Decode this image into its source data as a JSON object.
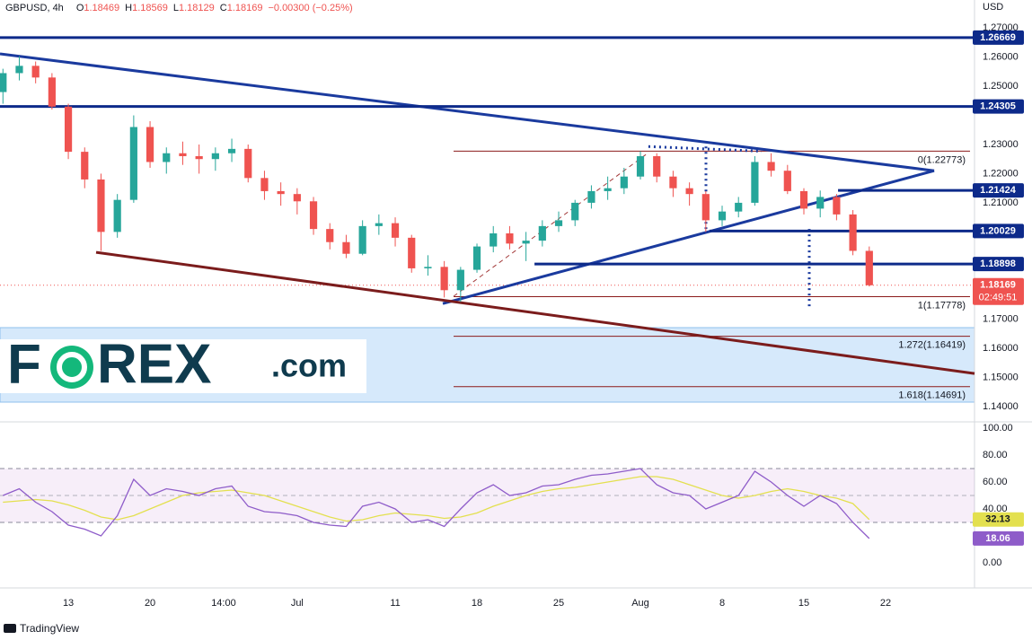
{
  "chart_data": [
    {
      "type": "candlestick",
      "title": "GBPUSD, 4h",
      "quote": [
        {
          "key": "O",
          "value": 1.18469
        },
        {
          "key": "H",
          "value": 1.18569
        },
        {
          "key": "L",
          "value": 1.18129
        },
        {
          "key": "C",
          "value": 1.18169
        }
      ],
      "change": "−0.00300 (−0.25%)",
      "currency": "USD",
      "x": [
        -4,
        -3,
        -2,
        -1,
        0,
        1,
        2,
        3,
        4,
        5,
        6,
        7,
        8,
        9,
        10,
        11,
        12,
        13,
        14,
        15,
        16,
        17,
        18,
        19,
        20,
        21,
        22,
        23,
        24,
        25,
        26,
        27,
        28,
        29,
        30,
        31,
        32,
        33,
        34,
        35,
        36,
        37,
        38,
        39,
        40,
        41,
        42,
        43,
        44,
        45,
        46,
        47,
        48,
        49
      ],
      "open": [
        1.248,
        1.2545,
        1.257,
        1.253,
        1.243,
        1.2275,
        1.218,
        1.2,
        1.211,
        1.236,
        1.224,
        1.227,
        1.226,
        1.225,
        1.227,
        1.2285,
        1.2185,
        1.214,
        1.213,
        1.2105,
        1.201,
        1.1965,
        1.1925,
        1.202,
        1.203,
        1.198,
        1.1875,
        1.188,
        1.18,
        1.187,
        1.195,
        1.1995,
        1.196,
        1.197,
        1.202,
        1.204,
        1.21,
        1.214,
        1.215,
        1.219,
        1.226,
        1.219,
        1.215,
        1.213,
        1.204,
        1.207,
        1.21,
        1.224,
        1.221,
        1.214,
        1.208,
        1.212,
        1.206,
        1.1935
      ],
      "high": [
        1.256,
        1.2603,
        1.2585,
        1.2545,
        1.244,
        1.229,
        1.22,
        1.213,
        1.24,
        1.238,
        1.229,
        1.231,
        1.23,
        1.229,
        1.232,
        1.23,
        1.221,
        1.217,
        1.215,
        1.212,
        1.203,
        1.199,
        1.204,
        1.206,
        1.205,
        1.199,
        1.192,
        1.19,
        1.188,
        1.196,
        1.202,
        1.202,
        1.2,
        1.204,
        1.207,
        1.211,
        1.216,
        1.219,
        1.222,
        1.2277,
        1.227,
        1.221,
        1.217,
        1.214,
        1.209,
        1.212,
        1.226,
        1.227,
        1.223,
        1.215,
        1.2142,
        1.213,
        1.2075,
        1.195
      ],
      "low": [
        1.244,
        1.252,
        1.251,
        1.242,
        1.225,
        1.215,
        1.1935,
        1.198,
        1.21,
        1.222,
        1.22,
        1.223,
        1.22,
        1.221,
        1.224,
        1.217,
        1.211,
        1.209,
        1.206,
        1.199,
        1.194,
        1.191,
        1.192,
        1.199,
        1.195,
        1.186,
        1.185,
        1.1775,
        1.176,
        1.186,
        1.193,
        1.194,
        1.19,
        1.195,
        1.2,
        1.202,
        1.208,
        1.211,
        1.213,
        1.218,
        1.217,
        1.212,
        1.209,
        1.2,
        1.202,
        1.205,
        1.209,
        1.219,
        1.213,
        1.206,
        1.205,
        1.204,
        1.192,
        1.18129
      ],
      "close": [
        1.2545,
        1.257,
        1.253,
        1.243,
        1.2275,
        1.218,
        1.2,
        1.211,
        1.236,
        1.224,
        1.227,
        1.226,
        1.225,
        1.227,
        1.2285,
        1.2185,
        1.214,
        1.213,
        1.2105,
        1.201,
        1.1965,
        1.1925,
        1.202,
        1.203,
        1.198,
        1.1875,
        1.188,
        1.18,
        1.187,
        1.195,
        1.1995,
        1.196,
        1.197,
        1.202,
        1.204,
        1.21,
        1.214,
        1.215,
        1.219,
        1.226,
        1.219,
        1.215,
        1.213,
        1.204,
        1.207,
        1.21,
        1.224,
        1.221,
        1.214,
        1.208,
        1.212,
        1.206,
        1.1935,
        1.18169
      ],
      "up_color": "#26a69a",
      "down_color": "#ef5350",
      "xlim": [
        -4.18,
        55.44
      ],
      "xticks": [
        {
          "value": 0,
          "label": "13"
        },
        {
          "value": 5,
          "label": "20"
        },
        {
          "value": 9.5,
          "label": "14:00"
        },
        {
          "value": 14,
          "label": "Jul"
        },
        {
          "value": 20,
          "label": "11"
        },
        {
          "value": 25,
          "label": "18"
        },
        {
          "value": 30,
          "label": "25"
        },
        {
          "value": 35,
          "label": "Aug"
        },
        {
          "value": 40,
          "label": "8"
        },
        {
          "value": 45,
          "label": "15"
        },
        {
          "value": 50,
          "label": "22"
        }
      ],
      "ylim": [
        1.1348,
        1.2796
      ],
      "yticks": [
        {
          "value": 1.27,
          "label": "1.27000"
        },
        {
          "value": 1.26,
          "label": "1.26000"
        },
        {
          "value": 1.25,
          "label": "1.25000"
        },
        {
          "value": 1.23,
          "label": "1.23000"
        },
        {
          "value": 1.22,
          "label": "1.22000"
        },
        {
          "value": 1.21,
          "label": "1.21000"
        },
        {
          "value": 1.17,
          "label": "1.17000"
        },
        {
          "value": 1.16,
          "label": "1.16000"
        },
        {
          "value": 1.15,
          "label": "1.15000"
        },
        {
          "value": 1.14,
          "label": "1.14000"
        }
      ],
      "levels": [
        {
          "value": 1.26669,
          "start": -4.18
        },
        {
          "value": 1.24305,
          "start": -4.18
        },
        {
          "value": 1.21424,
          "start": 47.09
        },
        {
          "value": 1.20029,
          "start": 39.23
        },
        {
          "value": 1.18898,
          "start": 28.52
        }
      ],
      "level_color": "#0d2a8a",
      "countdown": "02:49:51",
      "fib": {
        "start": 23.57,
        "color": "#8b1a1a",
        "levels": [
          {
            "value": 1.22773,
            "label": "0(1.22773)"
          },
          {
            "value": 1.17778,
            "label": "1(1.17778)"
          },
          {
            "value": 1.16419,
            "label": "1.272(1.16419)"
          },
          {
            "value": 1.14691,
            "label": "1.618(1.14691)"
          }
        ]
      },
      "trendlines": [
        {
          "color": "#1a3a9e",
          "style": "solid",
          "points": [
            [
              -4.18,
              1.2611
            ],
            [
              52.97,
              1.221
            ]
          ]
        },
        {
          "color": "#1a3a9e",
          "style": "solid",
          "points": [
            [
              22.91,
              1.1754
            ],
            [
              52.97,
              1.221
            ]
          ]
        },
        {
          "color": "#7b1c1c",
          "style": "solid",
          "points": [
            [
              1.7,
              1.193
            ],
            [
              55.44,
              1.1514
            ]
          ]
        },
        {
          "color": "#a33a3a",
          "style": "dashed",
          "points": [
            [
              23.57,
              1.1779
            ],
            [
              35.49,
              1.2272
            ]
          ]
        },
        {
          "color": "#1a3a9e",
          "style": "dotted",
          "points": [
            [
              35.49,
              1.2293
            ],
            [
              42.42,
              1.2277
            ]
          ]
        },
        {
          "color": "#1a3a9e",
          "style": "dotted",
          "points": [
            [
              39.01,
              1.2293
            ],
            [
              39.01,
              1.201
            ]
          ]
        },
        {
          "color": "#1a3a9e",
          "style": "dotted",
          "points": [
            [
              45.33,
              1.201
            ],
            [
              45.33,
              1.1733
            ]
          ]
        }
      ]
    },
    {
      "type": "line",
      "x": [
        -4,
        -3,
        -2,
        -1,
        0,
        1,
        2,
        3,
        4,
        5,
        6,
        7,
        8,
        9,
        10,
        11,
        12,
        13,
        14,
        15,
        16,
        17,
        18,
        19,
        20,
        21,
        22,
        23,
        24,
        25,
        26,
        27,
        28,
        29,
        30,
        31,
        32,
        33,
        34,
        35,
        36,
        37,
        38,
        39,
        40,
        41,
        42,
        43,
        44,
        45,
        46,
        47,
        48,
        49
      ],
      "series": [
        {
          "color": "#8e5cc9",
          "values": [
            50,
            55,
            45,
            38,
            28,
            25,
            20,
            35,
            62,
            50,
            55,
            53,
            50,
            55,
            57,
            42,
            38,
            37,
            35,
            30,
            28,
            27,
            42,
            45,
            40,
            30,
            32,
            27,
            40,
            52,
            58,
            50,
            52,
            57,
            58,
            62,
            65,
            66,
            68,
            70,
            58,
            52,
            50,
            40,
            45,
            50,
            68,
            60,
            50,
            42,
            50,
            44,
            30,
            18.06
          ]
        },
        {
          "color": "#e3e04f",
          "values": [
            45,
            46,
            47,
            46,
            43,
            39,
            34,
            32,
            35,
            40,
            45,
            50,
            52,
            53,
            54,
            52,
            50,
            46,
            42,
            38,
            34,
            31,
            32,
            35,
            37,
            36,
            35,
            33,
            34,
            37,
            42,
            46,
            50,
            53,
            55,
            56,
            58,
            60,
            62,
            64,
            64,
            62,
            58,
            54,
            50,
            48,
            50,
            53,
            55,
            53,
            50,
            48,
            44,
            32.13
          ]
        }
      ],
      "ylim": [
        -18.7,
        104.7
      ],
      "yticks": [
        {
          "value": 100,
          "label": "100.00"
        },
        {
          "value": 80,
          "label": "80.00"
        },
        {
          "value": 60,
          "label": "60.00"
        },
        {
          "value": 40,
          "label": "40.00"
        },
        {
          "value": 0,
          "label": "0.00"
        }
      ],
      "bands": [
        30,
        70
      ],
      "midline": 50
    }
  ],
  "logo": [
    "F",
    "REX",
    ".com"
  ],
  "footer": "TradingView"
}
